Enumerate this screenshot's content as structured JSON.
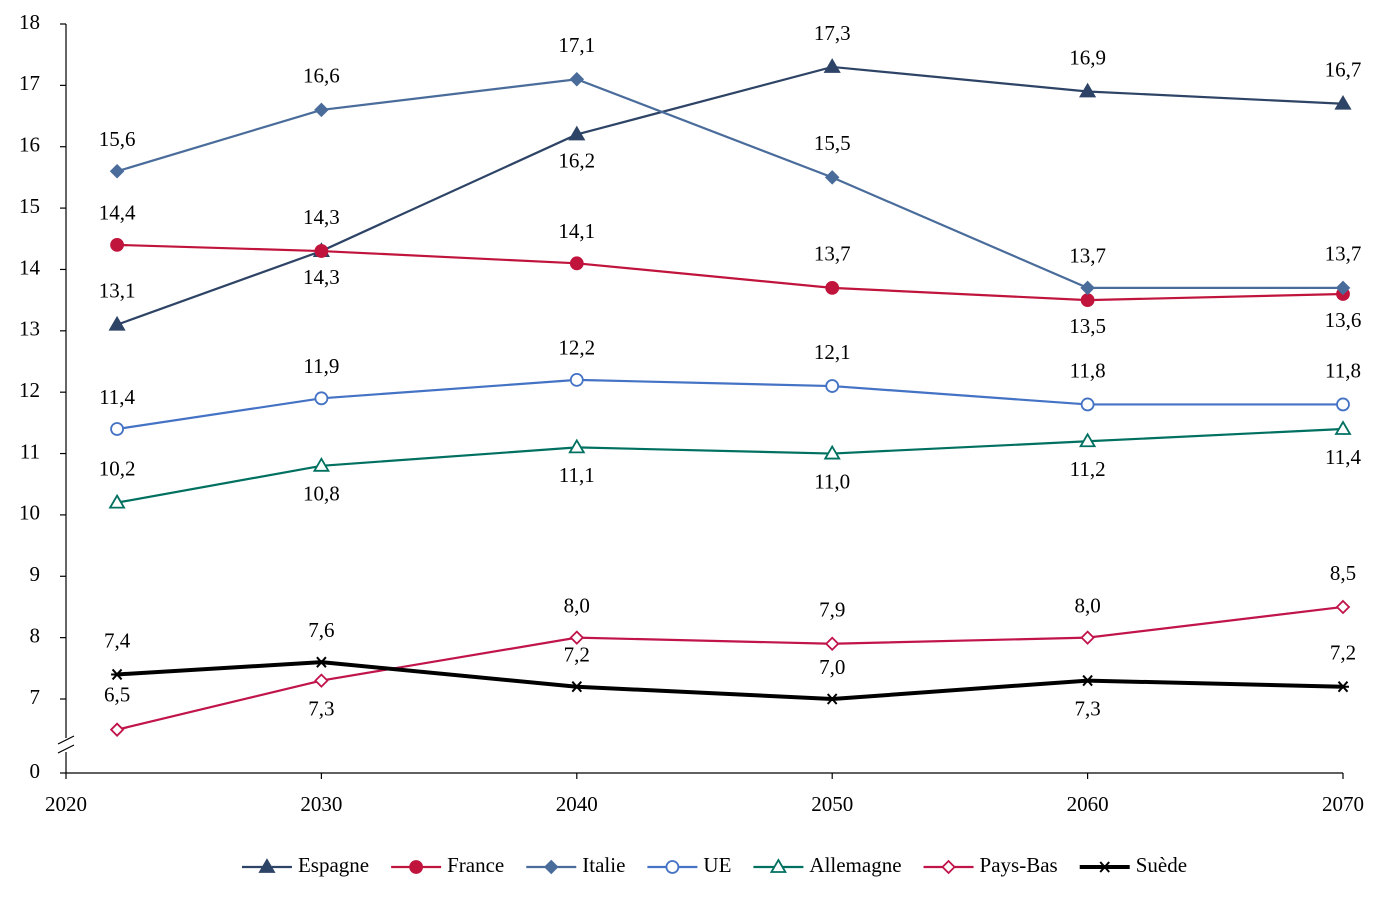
{
  "chart_data": {
    "type": "line",
    "x": [
      2022,
      2030,
      2040,
      2050,
      2060,
      2070
    ],
    "xlim": [
      2020,
      2070
    ],
    "xticks": [
      2020,
      2030,
      2040,
      2050,
      2060,
      2070
    ],
    "ylim": [
      0,
      18
    ],
    "yticks": [
      0,
      7,
      8,
      9,
      10,
      11,
      12,
      13,
      14,
      15,
      16,
      17,
      18
    ],
    "y_axis_break": true,
    "legend": "bottom",
    "series": [
      {
        "name": "Espagne",
        "color": "#2e4466",
        "marker": "triangle",
        "filled": true,
        "values": [
          13.1,
          14.3,
          16.2,
          17.3,
          16.9,
          16.7
        ],
        "value_labels": [
          "13,1",
          "14,3",
          "16,2",
          "17,3",
          "16,9",
          "16,7"
        ]
      },
      {
        "name": "France",
        "color": "#c0143c",
        "marker": "circle",
        "filled": true,
        "values": [
          14.4,
          14.3,
          14.1,
          13.7,
          13.5,
          13.6
        ],
        "value_labels": [
          "14,4",
          "14,3",
          "14,1",
          "13,7",
          "13,5",
          "13,6"
        ]
      },
      {
        "name": "Italie",
        "color": "#4a6c9b",
        "marker": "diamond",
        "filled": true,
        "values": [
          15.6,
          16.6,
          17.1,
          15.5,
          13.7,
          13.7
        ],
        "value_labels": [
          "15,6",
          "16,6",
          "17,1",
          "15,5",
          "13,7",
          "13,7"
        ]
      },
      {
        "name": "UE",
        "color": "#4472c4",
        "marker": "circle",
        "filled": false,
        "values": [
          11.4,
          11.9,
          12.2,
          12.1,
          11.8,
          11.8
        ],
        "value_labels": [
          "11,4",
          "11,9",
          "12,2",
          "12,1",
          "11,8",
          "11,8"
        ]
      },
      {
        "name": "Allemagne",
        "color": "#007060",
        "marker": "triangle",
        "filled": false,
        "values": [
          10.2,
          10.8,
          11.1,
          11.0,
          11.2,
          11.4
        ],
        "value_labels": [
          "10,2",
          "10,8",
          "11,1",
          "11,0",
          "11,2",
          "11,4"
        ]
      },
      {
        "name": "Pays-Bas",
        "color": "#c0144a",
        "marker": "diamond",
        "filled": false,
        "values": [
          6.5,
          7.3,
          8.0,
          7.9,
          8.0,
          8.5
        ],
        "value_labels": [
          "6,5",
          "7,3",
          "8,0",
          "7,9",
          "8,0",
          "8,5"
        ]
      },
      {
        "name": "Suède",
        "color": "#000000",
        "marker": "star",
        "filled": true,
        "width": 4,
        "values": [
          7.4,
          7.6,
          7.2,
          7.0,
          7.3,
          7.2
        ],
        "value_labels": [
          "7,4",
          "7,6",
          "7,2",
          "7,0",
          "7,3",
          "7,2"
        ]
      }
    ]
  }
}
